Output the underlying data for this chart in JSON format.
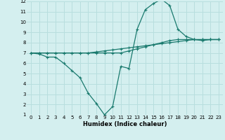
{
  "xlabel": "Humidex (Indice chaleur)",
  "background_color": "#d4efef",
  "grid_color": "#b8dede",
  "line_color": "#1a7a6e",
  "xlim": [
    -0.5,
    23.5
  ],
  "ylim": [
    1,
    12
  ],
  "xticks": [
    0,
    1,
    2,
    3,
    4,
    5,
    6,
    7,
    8,
    9,
    10,
    11,
    12,
    13,
    14,
    15,
    16,
    17,
    18,
    19,
    20,
    21,
    22,
    23
  ],
  "yticks": [
    1,
    2,
    3,
    4,
    5,
    6,
    7,
    8,
    9,
    10,
    11,
    12
  ],
  "series": [
    [
      7.0,
      6.9,
      6.6,
      6.6,
      6.0,
      5.3,
      4.6,
      3.1,
      2.1,
      1.0,
      1.8,
      5.7,
      5.5,
      9.3,
      11.2,
      11.8,
      12.2,
      11.6,
      9.3,
      8.6,
      8.3,
      8.2,
      8.3,
      8.3
    ],
    [
      7.0,
      7.0,
      7.0,
      7.0,
      7.0,
      7.0,
      7.0,
      7.0,
      7.1,
      7.2,
      7.3,
      7.4,
      7.5,
      7.6,
      7.7,
      7.8,
      7.9,
      8.0,
      8.1,
      8.2,
      8.3,
      8.3,
      8.3,
      8.3
    ],
    [
      7.0,
      7.0,
      7.0,
      7.0,
      7.0,
      7.0,
      7.0,
      7.0,
      7.0,
      7.0,
      7.0,
      7.0,
      7.2,
      7.4,
      7.6,
      7.8,
      8.0,
      8.2,
      8.3,
      8.3,
      8.3,
      8.3,
      8.3,
      8.3
    ]
  ]
}
